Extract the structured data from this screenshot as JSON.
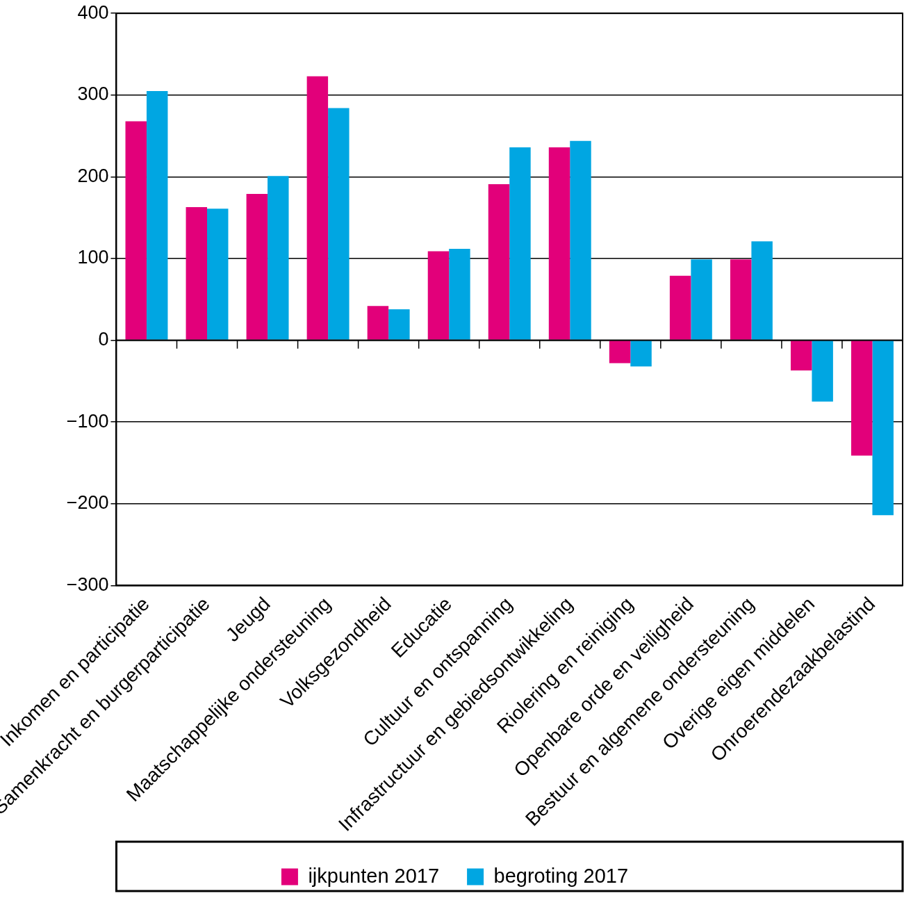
{
  "chart_data": {
    "type": "bar",
    "categories": [
      "Inkomen en participatie",
      "Samenkracht en burgerparticipatie",
      "Jeugd",
      "Maatschappelijke ondersteuning",
      "Volksgezondheid",
      "Educatie",
      "Cultuur en ontspanning",
      "Infrastructuur en gebiedsontwikkeling",
      "Riolering en reiniging",
      "Openbare orde en veiligheid",
      "Bestuur en algemene ondersteuning",
      "Overige eigen middelen",
      "Onroerendezaakbelastind"
    ],
    "series": [
      {
        "name": "ijkpunten 2017",
        "color": "#e2007a",
        "values": [
          268,
          163,
          179,
          323,
          42,
          109,
          191,
          236,
          -28,
          79,
          99,
          -37,
          -141
        ]
      },
      {
        "name": "begroting 2017",
        "color": "#00a6e2",
        "values": [
          305,
          161,
          201,
          284,
          38,
          112,
          236,
          244,
          -32,
          99,
          121,
          -75,
          -214
        ]
      }
    ],
    "ylim": [
      -300,
      400
    ],
    "yticks": [
      {
        "value": -300,
        "label": "−300"
      },
      {
        "value": -200,
        "label": "−200"
      },
      {
        "value": -100,
        "label": "−100"
      },
      0,
      100,
      200,
      300,
      400
    ],
    "grid": true,
    "legend": "bottom"
  }
}
